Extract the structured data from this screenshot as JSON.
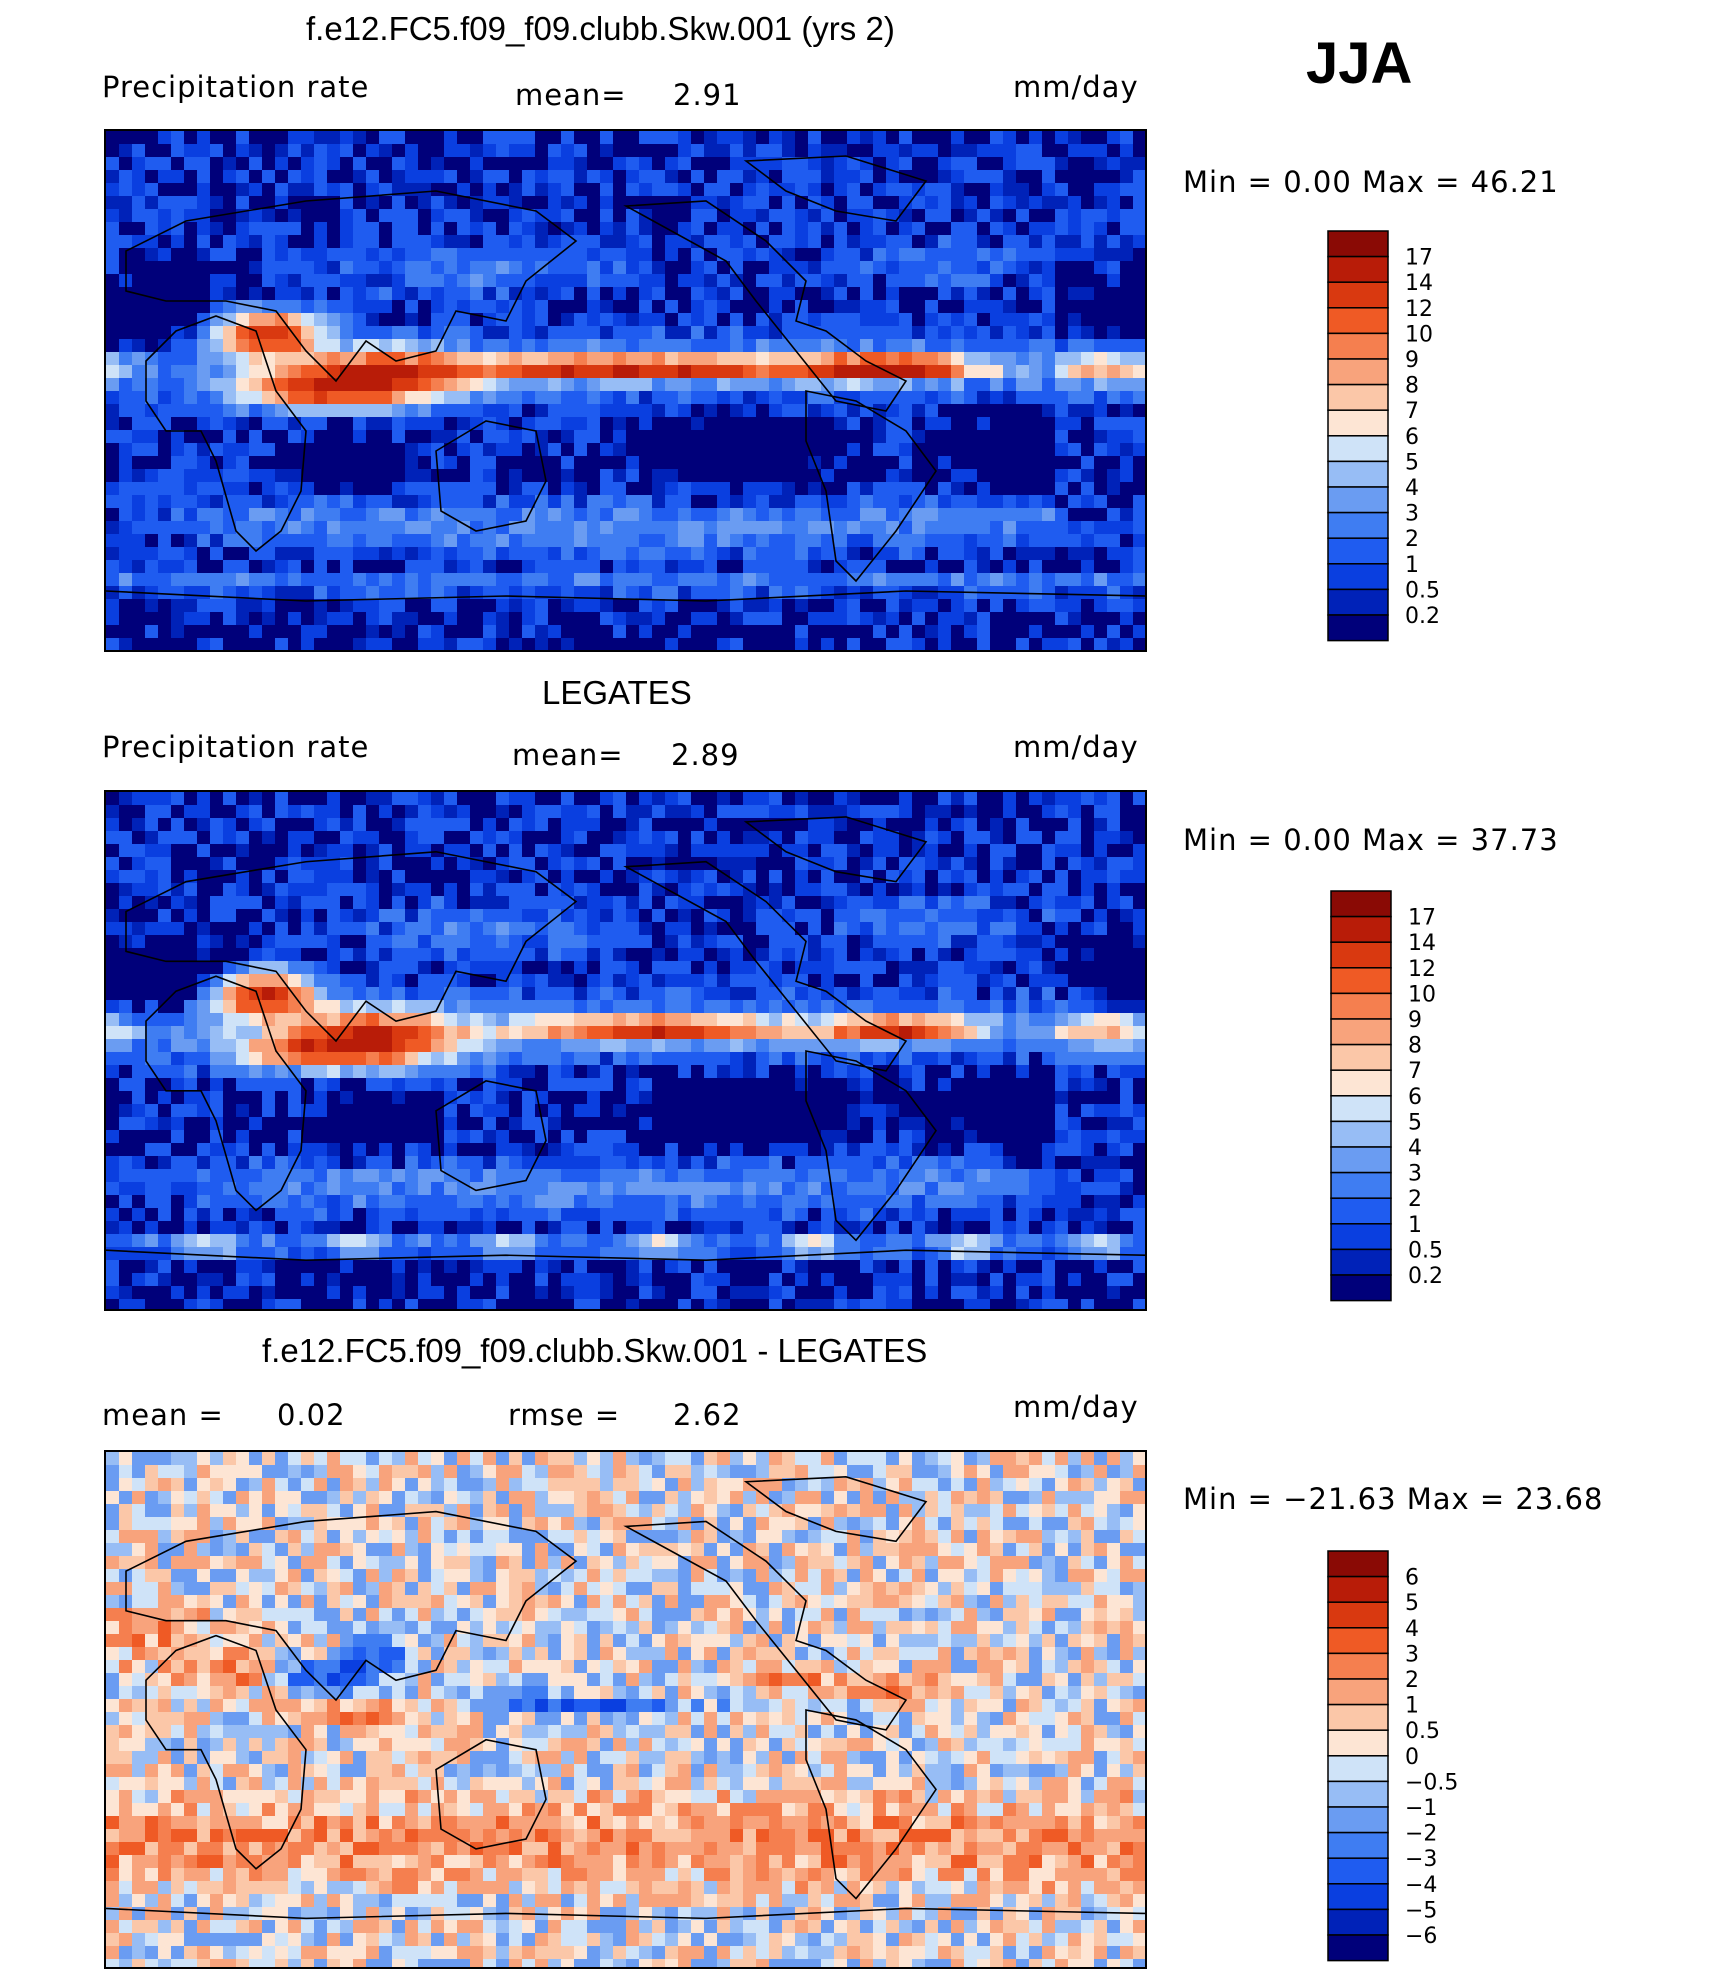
{
  "season": "JJA",
  "colors": {
    "abs_scale": [
      "#00007a",
      "#0022b8",
      "#0a3fe0",
      "#1f5cf0",
      "#3f7df2",
      "#6a9cf2",
      "#97bdf5",
      "#cfe3f8",
      "#fde5d4",
      "#fbc7a8",
      "#f8a37c",
      "#f57f4f",
      "#ef5a25",
      "#d93910",
      "#b81c08",
      "#8a0a05"
    ],
    "diff_scale": [
      "#00007a",
      "#0022b8",
      "#0a3fe0",
      "#1f5cf0",
      "#3f7df2",
      "#6a9cf2",
      "#97bdf5",
      "#cfe3f8",
      "#fde5d4",
      "#fbc7a8",
      "#f8a37c",
      "#f57f4f",
      "#ef5a25",
      "#d93910",
      "#b81c08",
      "#8a0a05"
    ],
    "coast": "#000000"
  },
  "panels": [
    {
      "title": "f.e12.FC5.f09_f09.clubb.Skw.001 (yrs 2)",
      "left_label": "Precipitation  rate",
      "mid_label": "mean=",
      "mid_value": "2.91",
      "units": "mm/day",
      "minmax": "Min  =     0.00  Max  =    46.21",
      "colorbar_labels": [
        "17",
        "14",
        "12",
        "10",
        "9",
        "8",
        "7",
        "6",
        "5",
        "4",
        "3",
        "2",
        "1",
        "0.5",
        "0.2"
      ]
    },
    {
      "title": "LEGATES",
      "left_label": "Precipitation  rate",
      "mid_label": "mean=",
      "mid_value": "2.89",
      "units": "mm/day",
      "minmax": "Min  =     0.00  Max  =    37.73",
      "colorbar_labels": [
        "17",
        "14",
        "12",
        "10",
        "9",
        "8",
        "7",
        "6",
        "5",
        "4",
        "3",
        "2",
        "1",
        "0.5",
        "0.2"
      ]
    },
    {
      "title": "f.e12.FC5.f09_f09.clubb.Skw.001 - LEGATES",
      "left_label": "mean  =",
      "left_value": "0.02",
      "mid_label": "rmse  =",
      "mid_value": "2.62",
      "units": "mm/day",
      "minmax": "Min  = −21.63  Max  =    23.68",
      "colorbar_labels": [
        "6",
        "5",
        "4",
        "3",
        "2",
        "1",
        "0.5",
        "0",
        "−0.5",
        "−1",
        "−2",
        "−3",
        "−4",
        "−5",
        "−6"
      ]
    }
  ],
  "chart_data": [
    {
      "type": "heatmap",
      "title": "f.e12.FC5.f09_f09.clubb.Skw.001 (yrs 2)",
      "variable": "Precipitation  rate",
      "units": "mm/day",
      "mean": 2.91,
      "min": 0.0,
      "max": 46.21,
      "contour_levels": [
        0.2,
        0.5,
        1,
        2,
        3,
        4,
        5,
        6,
        7,
        8,
        9,
        10,
        12,
        14,
        17
      ]
    },
    {
      "type": "heatmap",
      "title": "LEGATES",
      "variable": "Precipitation  rate",
      "units": "mm/day",
      "mean": 2.89,
      "min": 0.0,
      "max": 37.73,
      "contour_levels": [
        0.2,
        0.5,
        1,
        2,
        3,
        4,
        5,
        6,
        7,
        8,
        9,
        10,
        12,
        14,
        17
      ]
    },
    {
      "type": "heatmap",
      "title": "f.e12.FC5.f09_f09.clubb.Skw.001 - LEGATES",
      "units": "mm/day",
      "mean": 0.02,
      "rmse": 2.62,
      "min": -21.63,
      "max": 23.68,
      "contour_levels": [
        -6,
        -5,
        -4,
        -3,
        -2,
        -1,
        -0.5,
        0,
        0.5,
        1,
        2,
        3,
        4,
        5,
        6
      ]
    }
  ]
}
